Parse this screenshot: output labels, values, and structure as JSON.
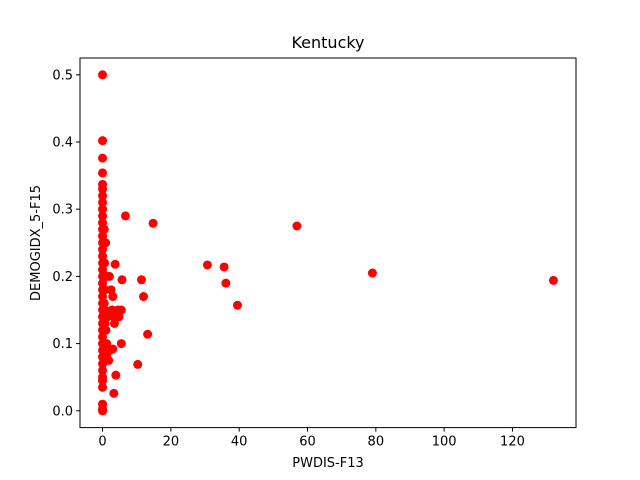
{
  "chart_data": {
    "type": "scatter",
    "title": "Kentucky",
    "xlabel": "PWDIS-F13",
    "ylabel": "DEMOGIDX_5-F15",
    "xlim": [
      -6.6,
      138.6
    ],
    "ylim": [
      -0.025,
      0.525
    ],
    "xticks": [
      0,
      20,
      40,
      60,
      80,
      100,
      120
    ],
    "yticks": [
      0.0,
      0.1,
      0.2,
      0.3,
      0.4,
      0.5
    ],
    "grid": false,
    "marker_color": "#ff0000",
    "series": [
      {
        "points": [
          [
            0.0,
            0.5
          ],
          [
            0.0,
            0.402
          ],
          [
            0.0,
            0.376
          ],
          [
            0.0,
            0.354
          ],
          [
            0.0,
            0.337
          ],
          [
            0.0,
            0.33
          ],
          [
            0.0,
            0.32
          ],
          [
            0.0,
            0.31
          ],
          [
            0.0,
            0.3
          ],
          [
            0.0,
            0.29
          ],
          [
            0.0,
            0.28
          ],
          [
            0.0,
            0.27
          ],
          [
            0.0,
            0.26
          ],
          [
            0.0,
            0.25
          ],
          [
            0.0,
            0.24
          ],
          [
            0.0,
            0.23
          ],
          [
            0.0,
            0.22
          ],
          [
            0.0,
            0.21
          ],
          [
            0.0,
            0.2
          ],
          [
            0.0,
            0.19
          ],
          [
            0.0,
            0.18
          ],
          [
            0.0,
            0.17
          ],
          [
            0.0,
            0.16
          ],
          [
            0.0,
            0.15
          ],
          [
            0.0,
            0.14
          ],
          [
            0.0,
            0.13
          ],
          [
            0.0,
            0.12
          ],
          [
            0.0,
            0.11
          ],
          [
            0.0,
            0.1
          ],
          [
            0.0,
            0.09
          ],
          [
            0.0,
            0.08
          ],
          [
            0.0,
            0.07
          ],
          [
            0.0,
            0.06
          ],
          [
            0.0,
            0.05
          ],
          [
            0.0,
            0.045
          ],
          [
            0.0,
            0.035
          ],
          [
            0.0,
            0.01
          ],
          [
            0.0,
            0.003
          ],
          [
            0.0,
            0.0
          ],
          [
            0.5,
            0.27
          ],
          [
            0.6,
            0.22
          ],
          [
            0.7,
            0.18
          ],
          [
            0.8,
            0.15
          ],
          [
            1.0,
            0.12
          ],
          [
            1.2,
            0.1
          ],
          [
            0.9,
            0.25
          ],
          [
            1.1,
            0.2
          ],
          [
            0.5,
            0.16
          ],
          [
            0.7,
            0.13
          ],
          [
            1.5,
            0.14
          ],
          [
            2.0,
            0.2
          ],
          [
            2.5,
            0.18
          ],
          [
            2.8,
            0.15
          ],
          [
            3.0,
            0.17
          ],
          [
            3.2,
            0.14
          ],
          [
            3.5,
            0.13
          ],
          [
            2.2,
            0.09
          ],
          [
            3.0,
            0.092
          ],
          [
            1.8,
            0.075
          ],
          [
            1.2,
            0.08
          ],
          [
            3.7,
            0.218
          ],
          [
            4.5,
            0.15
          ],
          [
            4.8,
            0.14
          ],
          [
            5.5,
            0.15
          ],
          [
            5.7,
            0.195
          ],
          [
            5.5,
            0.1
          ],
          [
            3.9,
            0.053
          ],
          [
            3.3,
            0.026
          ],
          [
            6.7,
            0.29
          ],
          [
            10.3,
            0.069
          ],
          [
            11.4,
            0.195
          ],
          [
            12.0,
            0.17
          ],
          [
            13.2,
            0.114
          ],
          [
            14.8,
            0.279
          ],
          [
            30.7,
            0.217
          ],
          [
            35.6,
            0.214
          ],
          [
            36.1,
            0.19
          ],
          [
            39.5,
            0.157
          ],
          [
            56.9,
            0.275
          ],
          [
            79.0,
            0.205
          ],
          [
            132.0,
            0.194
          ]
        ]
      }
    ]
  }
}
